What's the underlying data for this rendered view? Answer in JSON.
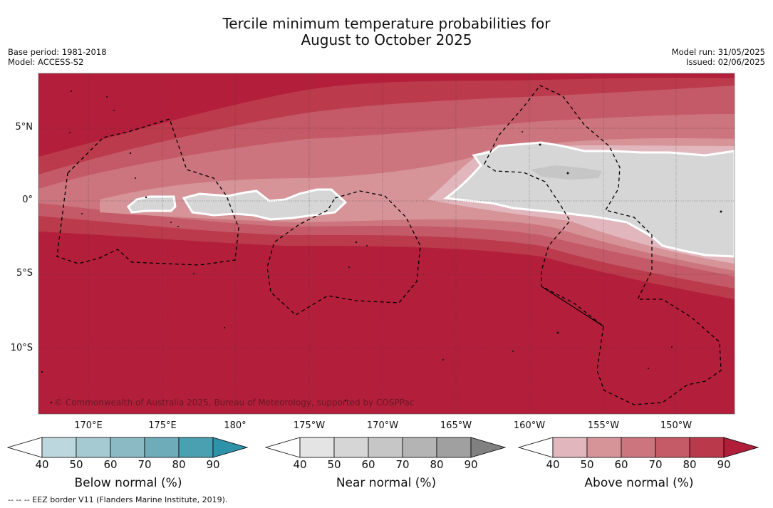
{
  "title_line1": "Tercile minimum temperature probabilities for",
  "title_line2": "August to October 2025",
  "base_period": "Base period: 1981-2018",
  "model": "Model: ACCESS-S2",
  "model_run": "Model run: 31/05/2025",
  "issued": "Issued: 02/06/2025",
  "copyright": "© Commonwealth of Australia 2025, Bureau of Meteorology, supported by COSPPac",
  "footer": "--  --  -- EEZ border V11 (Flanders Marine Institute, 2019).",
  "lat_labels": [
    "5°N",
    "0°",
    "5°S",
    "10°S"
  ],
  "lon_labels": [
    "170°E",
    "175°E",
    "180°",
    "175°W",
    "170°W",
    "165°W",
    "160°W",
    "155°W",
    "150°W"
  ],
  "colorbars": [
    {
      "label": "Below normal (%)",
      "ticks": [
        "40",
        "50",
        "60",
        "70",
        "80",
        "90"
      ],
      "colors": [
        "#ffffff",
        "#bdd7de",
        "#a6cad1",
        "#8bbac4",
        "#6eacb9",
        "#4a9fb0",
        "#2e93aa"
      ]
    },
    {
      "label": "Near normal (%)",
      "ticks": [
        "40",
        "50",
        "60",
        "70",
        "80",
        "90"
      ],
      "colors": [
        "#ffffff",
        "#e4e4e4",
        "#d6d6d6",
        "#c6c6c6",
        "#b4b4b4",
        "#a0a0a0",
        "#808080"
      ]
    },
    {
      "label": "Above normal (%)",
      "ticks": [
        "40",
        "50",
        "60",
        "70",
        "80",
        "90"
      ],
      "colors": [
        "#ffffff",
        "#e1b7bd",
        "#d69499",
        "#cc757e",
        "#c45b67",
        "#ba3a4b",
        "#b01e3a"
      ]
    }
  ],
  "map_colors": {
    "above_90": "#b31f3b",
    "above_80": "#bb3a4c",
    "above_70": "#c45a67",
    "above_60": "#cc757e",
    "above_50": "#d69499",
    "above_40": "#e1b7bd",
    "near_50": "#d6d6d6",
    "near_60": "#c6c6c6"
  }
}
